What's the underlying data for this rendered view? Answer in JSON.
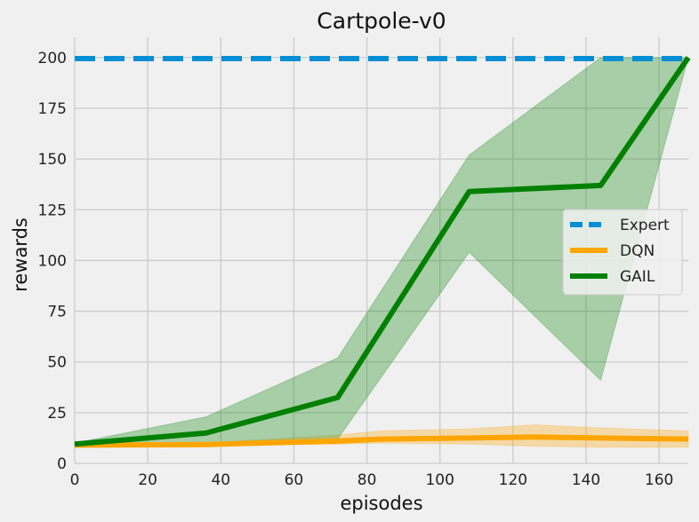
{
  "chart_data": {
    "type": "line",
    "title": "Cartpole-v0",
    "xlabel": "episodes",
    "ylabel": "rewards",
    "xlim": [
      0,
      168
    ],
    "ylim": [
      0,
      210
    ],
    "xticks": [
      0,
      20,
      40,
      60,
      80,
      100,
      120,
      140,
      160
    ],
    "yticks": [
      0,
      25,
      50,
      75,
      100,
      125,
      150,
      175,
      200
    ],
    "grid": true,
    "legend_position": "center-right",
    "series": [
      {
        "name": "Expert",
        "style": "dashed",
        "color": "#008fd5",
        "x": [
          0,
          168
        ],
        "y": [
          199.5,
          199.5
        ]
      },
      {
        "name": "DQN",
        "style": "solid",
        "color": "#ffa500",
        "x": [
          0,
          36,
          72,
          84,
          108,
          126,
          144,
          168
        ],
        "y": [
          9,
          9.3,
          11,
          12,
          12.5,
          13,
          12.5,
          12
        ],
        "lower": [
          8.5,
          9,
          9.5,
          10,
          9.5,
          8.5,
          8,
          8
        ],
        "upper": [
          9.5,
          10,
          14,
          16,
          17,
          19,
          17.5,
          16
        ]
      },
      {
        "name": "GAIL",
        "style": "solid",
        "color": "#008000",
        "x": [
          0,
          36,
          72,
          108,
          144,
          168
        ],
        "y": [
          9.5,
          15,
          32.5,
          134,
          137,
          200
        ],
        "lower": [
          9,
          10,
          12,
          104,
          41,
          200
        ],
        "upper": [
          10,
          23,
          52,
          152,
          200,
          200
        ]
      }
    ]
  }
}
